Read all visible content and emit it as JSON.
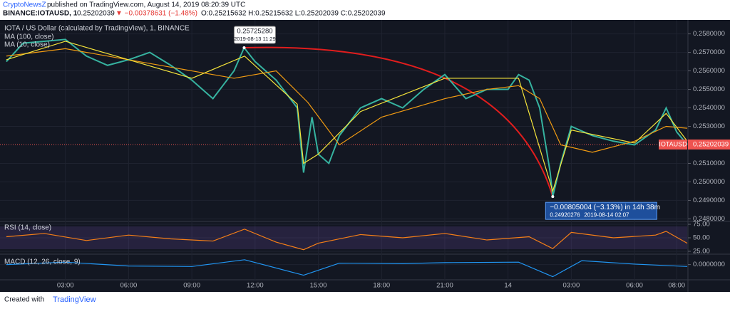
{
  "header": {
    "publisher": "CryptoNewsZ",
    "published": "published on TradingView.com, August 14, 2019 08:20:39 UTC",
    "symbol": "BINANCE:IOTAUSD, 1",
    "last": "0.25202039",
    "change": "▼ −0.00378631 (−1.48%)",
    "ohlc": "O:0.25215632 H:0.25215632 L:0.25202039 C:0.25202039"
  },
  "chart_data": {
    "type": "line",
    "title": "IOTA / US Dollar (calculated by TradingView), 1, BINANCE",
    "xlim": [
      0,
      32.5
    ],
    "xticks": [
      {
        "value": 3,
        "label": "03:00"
      },
      {
        "value": 6,
        "label": "06:00"
      },
      {
        "value": 9,
        "label": "09:00"
      },
      {
        "value": 12,
        "label": "12:00"
      },
      {
        "value": 15,
        "label": "15:00"
      },
      {
        "value": 18,
        "label": "18:00"
      },
      {
        "value": 21,
        "label": "21:00"
      },
      {
        "value": 24,
        "label": "14"
      },
      {
        "value": 27,
        "label": "03:00"
      },
      {
        "value": 30,
        "label": "06:00"
      },
      {
        "value": 32,
        "label": "08:00"
      }
    ],
    "ylim": [
      0.2479,
      0.2586
    ],
    "yticks": [
      {
        "value": 0.258,
        "label": "0.2580000"
      },
      {
        "value": 0.257,
        "label": "0.2570000"
      },
      {
        "value": 0.256,
        "label": "0.2560000"
      },
      {
        "value": 0.255,
        "label": "0.2550000"
      },
      {
        "value": 0.254,
        "label": "0.2540000"
      },
      {
        "value": 0.253,
        "label": "0.2530000"
      },
      {
        "value": 0.251,
        "label": "0.2510000"
      },
      {
        "value": 0.25,
        "label": "0.2500000"
      },
      {
        "value": 0.249,
        "label": "0.2490000"
      },
      {
        "value": 0.248,
        "label": "0.2480000"
      }
    ],
    "rsi_lim": [
      21,
      79
    ],
    "rsi_ticks": [
      {
        "value": 75,
        "label": "75.00"
      },
      {
        "value": 50,
        "label": "50.00"
      },
      {
        "value": 25,
        "label": "25.00"
      }
    ],
    "macd_lim": [
      -0.0003,
      0.0002
    ],
    "macd_ticks": [
      {
        "value": 0,
        "label": "0.0000000"
      }
    ],
    "grid": true,
    "series": [
      {
        "name": "IOTAUSD",
        "color": "#36b3a0",
        "pane": "main",
        "x": [
          0.2,
          1,
          2,
          3,
          4,
          5,
          6,
          7,
          8,
          9,
          10,
          11,
          11.48,
          12,
          13,
          14,
          14.3,
          14.7,
          15,
          15.5,
          16,
          17,
          18,
          19,
          20,
          21,
          22,
          23,
          24,
          24.5,
          25,
          25.5,
          26,
          26.12,
          26.5,
          27,
          28,
          29,
          30,
          31,
          31.5,
          32,
          32.5
        ],
        "values": [
          0.2565,
          0.2575,
          0.2576,
          0.2577,
          0.2568,
          0.2563,
          0.2566,
          0.257,
          0.2563,
          0.2555,
          0.2545,
          0.256,
          0.2572528,
          0.2565,
          0.2555,
          0.254,
          0.2505,
          0.2535,
          0.2515,
          0.251,
          0.2525,
          0.254,
          0.2545,
          0.254,
          0.255,
          0.2558,
          0.2545,
          0.255,
          0.255,
          0.2558,
          0.2555,
          0.254,
          0.2505,
          0.24920276,
          0.251,
          0.253,
          0.2525,
          0.2522,
          0.252,
          0.2528,
          0.254,
          0.2527,
          0.25202039
        ]
      },
      {
        "name": "MA (100, close)",
        "color": "#f39c12",
        "pane": "main",
        "x": [
          0.2,
          3,
          6,
          9,
          11,
          13,
          14.5,
          16,
          18,
          21,
          23,
          24.5,
          25.5,
          26.5,
          28,
          30,
          31.5,
          32.5
        ],
        "values": [
          0.2568,
          0.2572,
          0.2566,
          0.256,
          0.2556,
          0.256,
          0.2543,
          0.252,
          0.2535,
          0.2545,
          0.255,
          0.2552,
          0.2545,
          0.252,
          0.2516,
          0.2522,
          0.253,
          0.2529
        ]
      },
      {
        "name": "MA (10, close)",
        "color": "#f5e43b",
        "pane": "main",
        "x": [
          0.2,
          3,
          6,
          9,
          11.5,
          14,
          14.3,
          15,
          17,
          21,
          24.5,
          26.12,
          27,
          30,
          31.5,
          32.5
        ],
        "values": [
          0.2566,
          0.2576,
          0.2566,
          0.2556,
          0.2568,
          0.2542,
          0.251,
          0.2515,
          0.2538,
          0.2556,
          0.2556,
          0.2495,
          0.2528,
          0.2521,
          0.2537,
          0.2522
        ]
      },
      {
        "name": "RSI (14, close)",
        "color": "#f57f17",
        "pane": "rsi",
        "x": [
          0.2,
          2,
          4,
          6,
          8,
          10,
          11.5,
          13,
          14.3,
          15,
          17,
          19,
          21,
          23,
          25,
          26.12,
          27,
          29,
          31,
          31.5,
          32.5
        ],
        "values": [
          52,
          58,
          45,
          55,
          48,
          44,
          66,
          42,
          28,
          40,
          56,
          50,
          58,
          46,
          52,
          30,
          60,
          50,
          55,
          62,
          40
        ]
      },
      {
        "name": "MACD (12, 26, close, 9)",
        "color": "#2196f3",
        "pane": "macd",
        "x": [
          0.2,
          3,
          6,
          9,
          11.5,
          14.3,
          16,
          19,
          21,
          24.5,
          26.12,
          27.5,
          30,
          32.5
        ],
        "values": [
          0,
          5e-05,
          -3e-05,
          -4e-05,
          0.0001,
          -0.00022,
          3e-05,
          2e-05,
          4e-05,
          5e-05,
          -0.00025,
          8e-05,
          1e-05,
          -4e-05
        ]
      }
    ],
    "peak": {
      "x": 11.48,
      "value": 0.2572528,
      "label": "0.25725280",
      "time": "2019-08-13 11:29"
    },
    "range": {
      "x": 26.12,
      "value": 0.24920276,
      "text": "−0.00805004 (−3.13%) in 14h 38m",
      "low_label": "0.24920276",
      "low_time": "2019-08-14  02:07"
    },
    "price_tag": {
      "symbol": "IOTAUSD",
      "value": 0.25202039,
      "label": "0.25202039"
    }
  },
  "footer": {
    "created": "Created with",
    "brand": "TradingView"
  }
}
